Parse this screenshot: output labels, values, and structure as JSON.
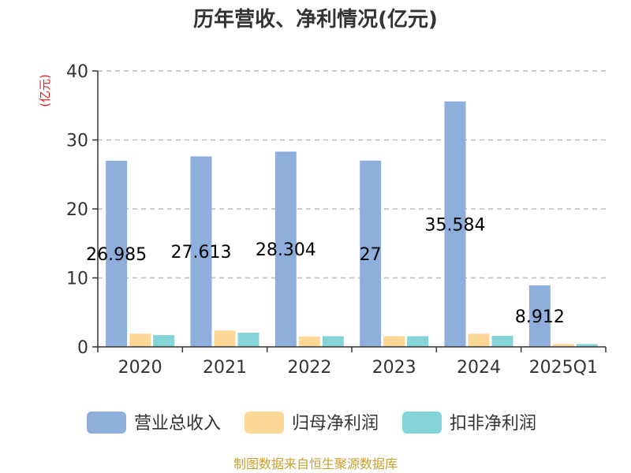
{
  "colors": {
    "revenue": "#8eaedc",
    "net_profit": "#fdd795",
    "deducted_profit": "#84d4d8",
    "source": "#c8a030",
    "unit": "#e02020"
  },
  "source_text": "制图数据来自恒生聚源数据库",
  "chart_data": {
    "type": "bar",
    "title": "历年营收、净利情况(亿元)",
    "ylabel": "(亿元)",
    "xlabel": "",
    "ylim": [
      0,
      40
    ],
    "yticks": [
      0,
      10,
      20,
      30,
      40
    ],
    "grid": true,
    "legend_position": "bottom",
    "categories": [
      "2020",
      "2021",
      "2022",
      "2023",
      "2024",
      "2025Q1"
    ],
    "series": [
      {
        "name": "营业总收入",
        "values": [
          26.985,
          27.613,
          28.304,
          27,
          35.584,
          8.912
        ],
        "labels": [
          "26.985",
          "27.613",
          "28.304",
          "27",
          "35.584",
          "8.912"
        ]
      },
      {
        "name": "归母净利润",
        "values": [
          1.9,
          2.35,
          1.5,
          1.55,
          1.9,
          0.42
        ]
      },
      {
        "name": "扣非净利润",
        "values": [
          1.7,
          2.05,
          1.55,
          1.55,
          1.6,
          0.4
        ]
      }
    ]
  }
}
